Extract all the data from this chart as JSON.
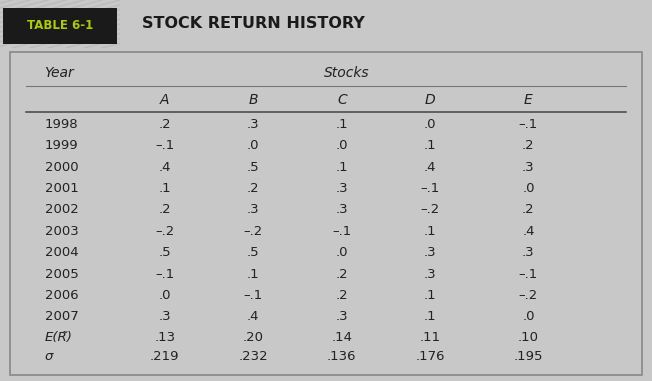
{
  "table_label": "TABLE 6-1",
  "table_title": "STOCK RETURN HISTORY",
  "col_header_year": "Year",
  "col_header_stocks": "Stocks",
  "col_headers": [
    "A",
    "B",
    "C",
    "D",
    "E"
  ],
  "years": [
    "1998",
    "1999",
    "2000",
    "2001",
    "2002",
    "2003",
    "2004",
    "2005",
    "2006",
    "2007"
  ],
  "data": [
    [
      ".2",
      ".3",
      ".1",
      ".0",
      "–.1"
    ],
    [
      "–.1",
      ".0",
      ".0",
      ".1",
      ".2"
    ],
    [
      ".4",
      ".5",
      ".1",
      ".4",
      ".3"
    ],
    [
      ".1",
      ".2",
      ".3",
      "–.1",
      ".0"
    ],
    [
      ".2",
      ".3",
      ".3",
      "–.2",
      ".2"
    ],
    [
      "–.2",
      "–.2",
      "–.1",
      ".1",
      ".4"
    ],
    [
      ".5",
      ".5",
      ".0",
      ".3",
      ".3"
    ],
    [
      "–.1",
      ".1",
      ".2",
      ".3",
      "–.1"
    ],
    [
      ".0",
      "–.1",
      ".2",
      ".1",
      "–.2"
    ],
    [
      ".3",
      ".4",
      ".3",
      ".1",
      ".0"
    ]
  ],
  "er_label": "E(R̃)",
  "er_values": [
    ".13",
    ".20",
    ".14",
    ".11",
    ".10"
  ],
  "sigma_label": "σ",
  "sigma_values": [
    ".219",
    ".232",
    ".136",
    ".176",
    ".195"
  ],
  "bg_color": "#ffffff",
  "outer_bg": "#c8c8c8",
  "label_bg": "#1a1a1a",
  "label_text_color": "#aacc00",
  "title_color": "#1a1a1a",
  "tab_hatch_bg": "#d8d8d8",
  "tab_hatch_line": "#bbbbbb",
  "border_color": "#888888",
  "text_color": "#222222",
  "title_fontsize": 11.5,
  "header_fontsize": 10,
  "data_fontsize": 9.5,
  "label_fontsize": 8.5
}
